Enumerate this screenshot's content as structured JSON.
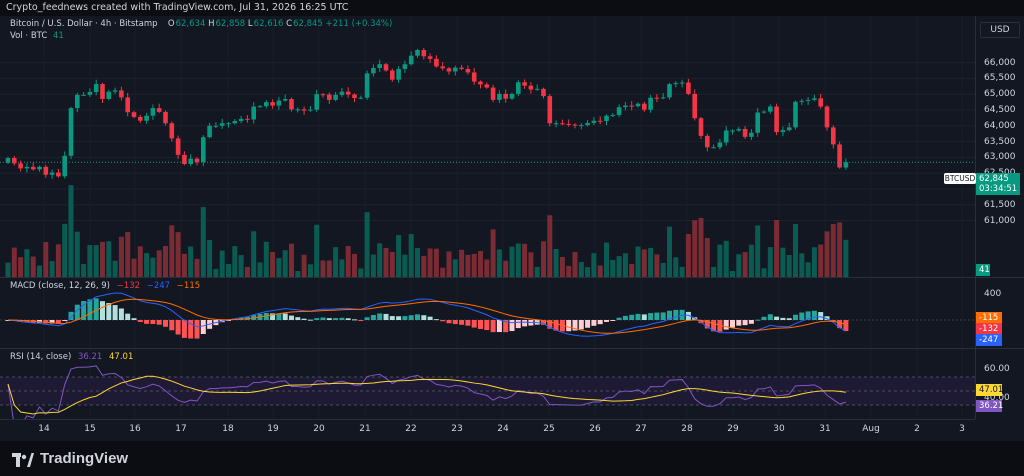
{
  "header": {
    "title": "Crypto_feednews created with TradingView.com, Jul 31, 2026 16:25 UTC"
  },
  "main": {
    "symbol_line": "Bitcoin / U.S. Dollar · 4h · Bitstamp",
    "ohlc": {
      "o_label": "O",
      "o": "62,634",
      "h_label": "H",
      "h": "62,858",
      "l_label": "L",
      "l": "62,616",
      "c_label": "C",
      "c": "62,845",
      "change": "+211 (+0.34%)"
    },
    "volume_label": "Vol · BTC",
    "volume_value": "41",
    "currency_button": "USD",
    "price_ticks": [
      "66,000",
      "65,500",
      "65,000",
      "64,500",
      "64,000",
      "63,500",
      "63,000",
      "62,500",
      "62,000",
      "61,500",
      "61,000"
    ],
    "symbol_tag": "BTCUSD",
    "last_price_tag": {
      "price": "62,845",
      "countdown": "03:34:51"
    },
    "volume_tag": "41",
    "colors": {
      "up": "#089981",
      "down": "#f23645",
      "vol_up": "#0a5c52",
      "vol_down": "#7a2b33",
      "macd_line": "#2962ff",
      "signal_line": "#ff6d00",
      "rsi_line": "#7e57c2",
      "rsi_ma": "#fdd835"
    }
  },
  "macd": {
    "legend_name": "MACD (close, 12, 26, 9)",
    "hist": "−132",
    "macd": "−247",
    "signal": "−115",
    "ticks": [
      "400"
    ],
    "tags": {
      "signal": "-115",
      "hist": "-132",
      "macd": "-247"
    }
  },
  "rsi": {
    "legend_name": "RSI (14, close)",
    "value": "36.21",
    "ma": "47.01",
    "ticks": [
      "60.00",
      "40.00"
    ],
    "tags": {
      "ma": "47.01",
      "rsi": "36.21"
    }
  },
  "x_axis": {
    "labels": [
      "14",
      "15",
      "16",
      "17",
      "18",
      "19",
      "20",
      "21",
      "22",
      "23",
      "24",
      "25",
      "26",
      "27",
      "28",
      "29",
      "30",
      "31",
      "Aug",
      "2",
      "3"
    ]
  },
  "footer": {
    "brand": "TradingView"
  },
  "chart_data": {
    "type": "candlestick",
    "title": "Bitcoin / U.S. Dollar · 4h · Bitstamp",
    "ylim": [
      60700,
      66400
    ],
    "price_ticks_values": [
      66000,
      65500,
      65000,
      64500,
      64000,
      63500,
      63000,
      62500,
      62000,
      61500,
      61000
    ],
    "candles_close": [
      62980,
      62810,
      62650,
      62700,
      62620,
      62700,
      62450,
      62520,
      62400,
      63050,
      64560,
      64980,
      64980,
      65070,
      65320,
      64850,
      65080,
      65120,
      64900,
      64430,
      64280,
      64160,
      64320,
      64560,
      64440,
      64080,
      63600,
      63080,
      62790,
      62960,
      62850,
      63640,
      64000,
      64000,
      64080,
      64080,
      64150,
      64220,
      64200,
      64610,
      64620,
      64750,
      64640,
      64800,
      64850,
      64520,
      64520,
      64480,
      64510,
      65000,
      64990,
      64820,
      64980,
      65080,
      64990,
      64880,
      64890,
      65660,
      65830,
      65950,
      65750,
      65460,
      65800,
      65950,
      66220,
      66400,
      66200,
      66120,
      65880,
      65820,
      65720,
      65840,
      65800,
      65690,
      65400,
      65310,
      65210,
      64820,
      65010,
      64860,
      65010,
      65380,
      65270,
      65150,
      65170,
      64940,
      64080,
      64080,
      64060,
      64040,
      64020,
      64020,
      64090,
      64160,
      64150,
      64320,
      64340,
      64590,
      64640,
      64620,
      64700,
      64510,
      64890,
      64880,
      64900,
      65320,
      65350,
      65370,
      65010,
      64240,
      63680,
      63320,
      63320,
      63470,
      63850,
      63850,
      63900,
      63650,
      63780,
      64420,
      64450,
      64610,
      63800,
      63860,
      63950,
      64760,
      64790,
      64820,
      64870,
      64610,
      63950,
      63410,
      62680,
      62845
    ],
    "volume_scale_note": "histogram under price"
  }
}
